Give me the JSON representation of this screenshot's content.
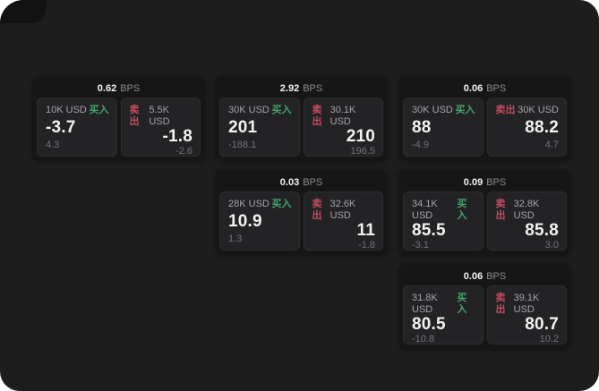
{
  "labels": {
    "bps": "BPS",
    "buy": "买入",
    "sell": "卖出"
  },
  "colors": {
    "buy": "#45a36a",
    "sell": "#c34b5e",
    "panel_background": "#1d1d1e",
    "card_background": "#161617",
    "tile_background": "#232325"
  },
  "cards": [
    {
      "bps": "0.62",
      "col": 1,
      "row": 1,
      "buy": {
        "amount": "10K USD",
        "price": "-3.7",
        "delta": "4.3"
      },
      "sell": {
        "amount": "5.5K USD",
        "price": "-1.8",
        "delta": "-2.6"
      }
    },
    {
      "bps": "2.92",
      "col": 2,
      "row": 1,
      "buy": {
        "amount": "30K USD",
        "price": "201",
        "delta": "-188.1"
      },
      "sell": {
        "amount": "30.1K USD",
        "price": "210",
        "delta": "196.5"
      }
    },
    {
      "bps": "0.06",
      "col": 3,
      "row": 1,
      "buy": {
        "amount": "30K USD",
        "price": "88",
        "delta": "-4.9"
      },
      "sell": {
        "amount": "30K USD",
        "price": "88.2",
        "delta": "4.7"
      }
    },
    {
      "bps": "0.03",
      "col": 2,
      "row": 2,
      "buy": {
        "amount": "28K USD",
        "price": "10.9",
        "delta": "1.3"
      },
      "sell": {
        "amount": "32.6K USD",
        "price": "11",
        "delta": "-1.8"
      }
    },
    {
      "bps": "0.09",
      "col": 3,
      "row": 2,
      "buy": {
        "amount": "34.1K USD",
        "price": "85.5",
        "delta": "-3.1"
      },
      "sell": {
        "amount": "32.8K USD",
        "price": "85.8",
        "delta": "3.0"
      }
    },
    {
      "bps": "0.06",
      "col": 3,
      "row": 3,
      "buy": {
        "amount": "31.8K USD",
        "price": "80.5",
        "delta": "-10.8"
      },
      "sell": {
        "amount": "39.1K USD",
        "price": "80.7",
        "delta": "10.2"
      }
    }
  ]
}
